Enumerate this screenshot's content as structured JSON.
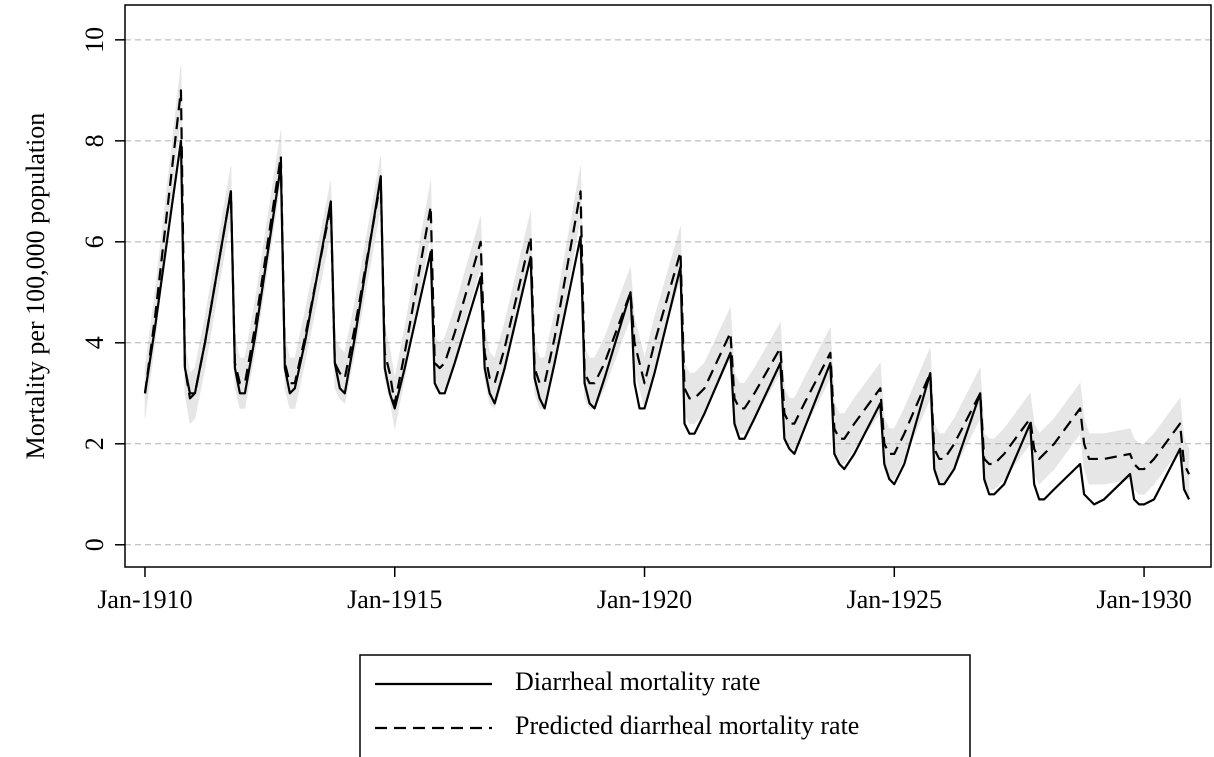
{
  "chart_data": {
    "type": "line",
    "ylabel": "Mortality per 100,000 population",
    "xlim": [
      1909.6,
      1931.34
    ],
    "ylim": [
      -0.44,
      10.69
    ],
    "xticks": [
      {
        "value": 1910,
        "label": "Jan-1910"
      },
      {
        "value": 1915,
        "label": "Jan-1915"
      },
      {
        "value": 1920,
        "label": "Jan-1920"
      },
      {
        "value": 1925,
        "label": "Jan-1925"
      },
      {
        "value": 1930,
        "label": "Jan-1930"
      }
    ],
    "yticks": [
      0,
      2,
      4,
      6,
      8,
      10
    ],
    "grid": true,
    "x": [
      1910,
      1910.2,
      1910.72,
      1910.8,
      1910.9,
      1911,
      1911.2,
      1911.72,
      1911.8,
      1911.9,
      1912,
      1912.2,
      1912.72,
      1912.8,
      1912.9,
      1913,
      1913.2,
      1913.72,
      1913.8,
      1913.9,
      1914,
      1914.2,
      1914.72,
      1914.8,
      1914.9,
      1915,
      1915.2,
      1915.72,
      1915.8,
      1915.9,
      1916,
      1916.2,
      1916.72,
      1916.8,
      1916.9,
      1917,
      1917.2,
      1917.72,
      1917.8,
      1917.9,
      1918,
      1918.2,
      1918.72,
      1918.8,
      1918.9,
      1919,
      1919.2,
      1919.72,
      1919.8,
      1919.9,
      1920,
      1920.2,
      1920.72,
      1920.8,
      1920.9,
      1921,
      1921.2,
      1921.72,
      1921.8,
      1921.9,
      1922,
      1922.2,
      1922.72,
      1922.8,
      1922.9,
      1923,
      1923.2,
      1923.72,
      1923.8,
      1923.9,
      1924,
      1924.2,
      1924.72,
      1924.8,
      1924.9,
      1925,
      1925.2,
      1925.72,
      1925.8,
      1925.9,
      1926,
      1926.2,
      1926.72,
      1926.8,
      1926.9,
      1927,
      1927.2,
      1927.72,
      1927.8,
      1927.9,
      1928,
      1928.2,
      1928.72,
      1928.8,
      1928.9,
      1929,
      1929.2,
      1929.72,
      1929.8,
      1929.9,
      1930,
      1930.2,
      1930.72,
      1930.8,
      1930.9
    ],
    "band": {
      "color": "#e6e6e6",
      "lower": [
        2.5,
        4.0,
        8.5,
        3.0,
        2.4,
        2.5,
        3.5,
        6.5,
        3.1,
        2.7,
        2.7,
        3.8,
        7.2,
        3.1,
        2.7,
        2.7,
        3.6,
        6.2,
        3.1,
        2.9,
        2.8,
        3.8,
        6.7,
        3.3,
        2.9,
        2.3,
        3.3,
        6.2,
        3.1,
        3.0,
        3.1,
        3.7,
        5.5,
        3.3,
        2.8,
        2.7,
        3.4,
        5.6,
        3.0,
        2.7,
        2.7,
        3.6,
        6.5,
        2.9,
        2.7,
        2.7,
        3.1,
        4.5,
        3.5,
        3.1,
        2.7,
        3.5,
        5.3,
        2.6,
        2.4,
        2.4,
        2.6,
        3.7,
        2.4,
        2.2,
        2.2,
        2.5,
        3.4,
        2.1,
        1.9,
        1.9,
        2.3,
        3.3,
        1.8,
        1.6,
        1.6,
        1.9,
        2.6,
        1.5,
        1.3,
        1.3,
        1.7,
        2.9,
        1.4,
        1.2,
        1.2,
        1.5,
        2.5,
        1.2,
        1.1,
        1.1,
        1.3,
        2.0,
        1.4,
        1.2,
        1.3,
        1.5,
        2.2,
        1.5,
        1.2,
        1.2,
        1.2,
        1.3,
        1.1,
        1.0,
        1.0,
        1.2,
        1.9,
        1.1,
        0.9
      ],
      "upper": [
        3.5,
        5.0,
        9.5,
        4.0,
        3.4,
        3.5,
        4.5,
        7.5,
        4.1,
        3.7,
        3.7,
        4.8,
        8.2,
        4.1,
        3.7,
        3.7,
        4.6,
        7.2,
        4.1,
        3.9,
        3.8,
        4.8,
        7.7,
        4.3,
        3.9,
        3.3,
        4.3,
        7.2,
        4.1,
        4.0,
        4.1,
        4.7,
        6.5,
        4.3,
        3.8,
        3.7,
        4.4,
        6.6,
        4.0,
        3.7,
        3.7,
        4.6,
        7.5,
        3.9,
        3.7,
        3.7,
        4.1,
        5.5,
        4.5,
        4.1,
        3.7,
        4.5,
        6.3,
        3.6,
        3.4,
        3.4,
        3.6,
        4.7,
        3.4,
        3.2,
        3.2,
        3.5,
        4.4,
        3.1,
        2.9,
        2.9,
        3.3,
        4.3,
        2.8,
        2.6,
        2.6,
        2.9,
        3.6,
        2.5,
        2.3,
        2.3,
        2.7,
        3.9,
        2.4,
        2.2,
        2.2,
        2.5,
        3.5,
        2.2,
        2.1,
        2.1,
        2.3,
        3.0,
        2.4,
        2.2,
        2.3,
        2.5,
        3.2,
        2.5,
        2.2,
        2.2,
        2.2,
        2.3,
        2.1,
        2.0,
        2.0,
        2.2,
        2.9,
        2.1,
        1.9
      ]
    },
    "series": [
      {
        "name": "Diarrheal mortality rate",
        "color": "#000000",
        "dash": "none",
        "values": [
          3.0,
          4.3,
          8.0,
          3.5,
          3.0,
          3.0,
          4.0,
          7.0,
          3.5,
          3.0,
          3.0,
          4.1,
          7.5,
          3.5,
          3.0,
          3.1,
          4.0,
          6.8,
          3.6,
          3.1,
          3.0,
          4.1,
          7.3,
          3.5,
          3.0,
          2.7,
          3.5,
          5.8,
          3.2,
          3.0,
          3.0,
          3.6,
          5.3,
          3.5,
          3.0,
          2.8,
          3.5,
          5.7,
          3.3,
          2.9,
          2.7,
          3.6,
          6.1,
          3.2,
          2.8,
          2.7,
          3.3,
          5.0,
          3.2,
          2.7,
          2.7,
          3.4,
          5.5,
          2.4,
          2.2,
          2.2,
          2.6,
          3.8,
          2.4,
          2.1,
          2.1,
          2.5,
          3.6,
          2.1,
          1.9,
          1.8,
          2.3,
          3.6,
          1.8,
          1.6,
          1.5,
          1.8,
          2.8,
          1.6,
          1.3,
          1.2,
          1.6,
          3.4,
          1.5,
          1.2,
          1.2,
          1.5,
          3.0,
          1.3,
          1.0,
          1.0,
          1.2,
          2.4,
          1.2,
          0.9,
          0.9,
          1.1,
          1.6,
          1.0,
          0.9,
          0.8,
          0.9,
          1.4,
          0.9,
          0.8,
          0.8,
          0.9,
          1.9,
          1.1,
          0.9
        ]
      },
      {
        "name": "Predicted diarrheal mortality rate",
        "color": "#000000",
        "dash": "12 7",
        "values": [
          3.0,
          4.5,
          9.0,
          3.5,
          2.9,
          3.0,
          4.0,
          7.0,
          3.6,
          3.2,
          3.2,
          4.3,
          7.7,
          3.6,
          3.2,
          3.2,
          4.1,
          6.7,
          3.6,
          3.4,
          3.3,
          4.3,
          7.2,
          3.8,
          3.4,
          2.8,
          3.8,
          6.7,
          3.6,
          3.5,
          3.6,
          4.2,
          6.0,
          3.8,
          3.3,
          3.2,
          3.9,
          6.1,
          3.5,
          3.2,
          3.2,
          4.1,
          7.0,
          3.4,
          3.2,
          3.2,
          3.6,
          5.0,
          4.0,
          3.6,
          3.2,
          4.0,
          5.8,
          3.1,
          2.9,
          2.9,
          3.1,
          4.2,
          2.9,
          2.7,
          2.7,
          3.0,
          3.9,
          2.6,
          2.4,
          2.4,
          2.8,
          3.8,
          2.3,
          2.1,
          2.1,
          2.4,
          3.1,
          2.0,
          1.8,
          1.8,
          2.2,
          3.4,
          1.9,
          1.7,
          1.7,
          2.0,
          3.0,
          1.7,
          1.6,
          1.6,
          1.8,
          2.5,
          1.9,
          1.7,
          1.8,
          2.0,
          2.7,
          2.0,
          1.7,
          1.7,
          1.7,
          1.8,
          1.6,
          1.5,
          1.5,
          1.7,
          2.4,
          1.6,
          1.4
        ]
      }
    ]
  }
}
